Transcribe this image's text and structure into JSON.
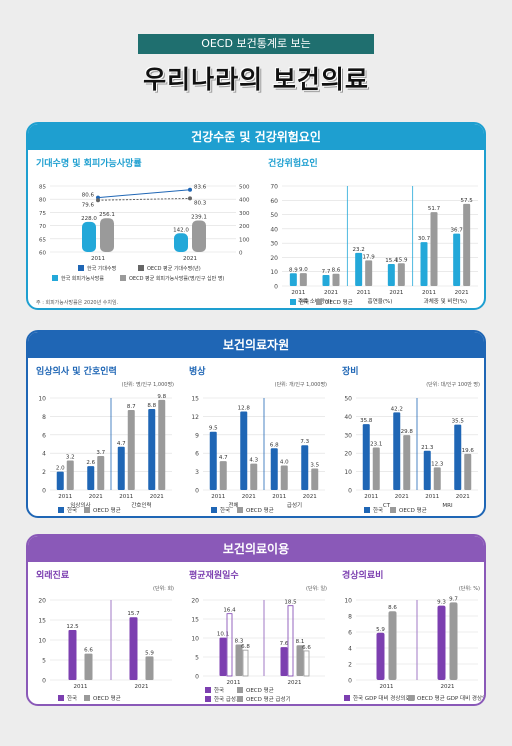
{
  "header": {
    "badge": "OECD 보건통계로 보는",
    "title": "우리나라의 보건의료"
  },
  "sections": {
    "health": {
      "title": "건강수준 및 건강위험요인",
      "color": "#1e9fd0"
    },
    "resources": {
      "title": "보건의료자원",
      "color": "#1f66b5"
    },
    "utilization": {
      "title": "보건의료이용",
      "color": "#8a59b8"
    }
  },
  "colors": {
    "korea_blue": "#1f66b5",
    "korea_purple": "#7c3fb0",
    "oecd_gray": "#9a9a9a",
    "teal": "#23a8d9"
  },
  "chart_data": [
    {
      "id": "life",
      "type": "bar",
      "title": "기대수명 및 회피가능사망률",
      "categories": [
        "2011",
        "2021"
      ],
      "y_left": {
        "ticks": [
          "85",
          "80",
          "75",
          "70",
          "65",
          "60"
        ],
        "ylim": [
          60,
          85
        ]
      },
      "y_right": {
        "ticks": [
          "500",
          "400",
          "300",
          "200",
          "100",
          "0"
        ],
        "ylim": [
          0,
          500
        ]
      },
      "series": [
        {
          "name": "한국 회피가능사망률",
          "axis": "right",
          "values": [
            228.0,
            142.0
          ]
        },
        {
          "name": "OECD 평균 회피가능사망률(명/인구 십만 명)",
          "axis": "right",
          "values": [
            256.1,
            239.1
          ]
        },
        {
          "name": "한국 기대수명",
          "axis": "left",
          "values": [
            80.6,
            83.6
          ]
        },
        {
          "name": "OECD 평균 기대수명(년)",
          "axis": "left",
          "values": [
            79.6,
            80.3
          ]
        }
      ],
      "labels": {
        "korea_mort": [
          "228.0",
          "142.0"
        ],
        "oecd_mort": [
          "256.1",
          "239.1"
        ],
        "korea_life": [
          "80.6",
          "83.6"
        ],
        "oecd_life": [
          "79.6",
          "80.3"
        ]
      },
      "legend": [
        "한국 기대수명",
        "OECD 평균 기대수명(년)",
        "한국 회피가능사망률",
        "OECD 평균 회피가능사망률(명/인구 십만 명)"
      ],
      "note": "주 : 회피가능사망률은 2020년 수치임."
    },
    {
      "id": "risk",
      "type": "bar",
      "title": "건강위험요인",
      "ylim": [
        0,
        70
      ],
      "ticks": [
        "70",
        "60",
        "50",
        "40",
        "30",
        "20",
        "10",
        "0"
      ],
      "groups": [
        {
          "label": "주류 소비량(ℓ)",
          "years": [
            "2011",
            "2021"
          ],
          "korea": [
            8.9,
            7.7
          ],
          "oecd": [
            9.0,
            8.6
          ],
          "klab": [
            "8.9",
            "7.7"
          ],
          "olab": [
            "9.0",
            "8.6"
          ]
        },
        {
          "label": "흡연율(%)",
          "years": [
            "2011",
            "2021"
          ],
          "korea": [
            23.2,
            15.4
          ],
          "oecd": [
            17.9,
            15.9
          ],
          "klab": [
            "23.2",
            "15.4"
          ],
          "olab": [
            "17.9",
            "15.9"
          ]
        },
        {
          "label": "과체중 및 비만(%)",
          "years": [
            "2011",
            "2021"
          ],
          "korea": [
            30.7,
            36.7
          ],
          "oecd": [
            51.7,
            57.5
          ],
          "klab": [
            "30.7",
            "36.7"
          ],
          "olab": [
            "51.7",
            "57.5"
          ]
        }
      ],
      "legend": [
        "한국",
        "OECD 평균"
      ]
    },
    {
      "id": "staff",
      "type": "bar",
      "title": "임상의사 및 간호인력",
      "unit": "(단위: 명/인구 1,000명)",
      "ylim": [
        0,
        10
      ],
      "ticks": [
        "10",
        "8",
        "6",
        "4",
        "2",
        "0"
      ],
      "groups": [
        {
          "label": "임상의사",
          "years": [
            "2011",
            "2021"
          ],
          "korea": [
            2.0,
            2.6
          ],
          "oecd": [
            3.2,
            3.7
          ],
          "klab": [
            "2.0",
            "2.6"
          ],
          "olab": [
            "3.2",
            "3.7"
          ]
        },
        {
          "label": "간호인력",
          "years": [
            "2011",
            "2021"
          ],
          "korea": [
            4.7,
            8.8
          ],
          "oecd": [
            8.7,
            9.8
          ],
          "klab": [
            "4.7",
            "8.8"
          ],
          "olab": [
            "8.7",
            "9.8"
          ]
        }
      ],
      "legend": [
        "한국",
        "OECD 평균"
      ]
    },
    {
      "id": "beds",
      "type": "bar",
      "title": "병상",
      "unit": "(단위: 개/인구 1,000명)",
      "ylim": [
        0,
        15
      ],
      "ticks": [
        "15",
        "12",
        "9",
        "6",
        "3",
        "0"
      ],
      "groups": [
        {
          "label": "전체",
          "years": [
            "2011",
            "2021"
          ],
          "korea": [
            9.5,
            12.8
          ],
          "oecd": [
            4.7,
            4.3
          ],
          "klab": [
            "9.5",
            "12.8"
          ],
          "olab": [
            "4.7",
            "4.3"
          ]
        },
        {
          "label": "급성기",
          "years": [
            "2011",
            "2021"
          ],
          "korea": [
            6.8,
            7.3
          ],
          "oecd": [
            4.0,
            3.5
          ],
          "klab": [
            "6.8",
            "7.3"
          ],
          "olab": [
            "4.0",
            "3.5"
          ]
        }
      ],
      "legend": [
        "한국",
        "OECD 평균"
      ]
    },
    {
      "id": "equip",
      "type": "bar",
      "title": "장비",
      "unit": "(단위: 대/인구 100만 명)",
      "ylim": [
        0,
        50
      ],
      "ticks": [
        "50",
        "40",
        "30",
        "20",
        "10",
        "0"
      ],
      "groups": [
        {
          "label": "CT",
          "years": [
            "2011",
            "2021"
          ],
          "korea": [
            35.8,
            42.2
          ],
          "oecd": [
            23.1,
            29.8
          ],
          "klab": [
            "35.8",
            "42.2"
          ],
          "olab": [
            "23.1",
            "29.8"
          ]
        },
        {
          "label": "MRI",
          "years": [
            "2011",
            "2021"
          ],
          "korea": [
            21.3,
            35.5
          ],
          "oecd": [
            12.3,
            19.6
          ],
          "klab": [
            "21.3",
            "35.5"
          ],
          "olab": [
            "12.3",
            "19.6"
          ]
        }
      ],
      "legend": [
        "한국",
        "OECD 평균"
      ]
    },
    {
      "id": "visits",
      "type": "bar",
      "title": "외래진료",
      "unit": "(단위: 회)",
      "ylim": [
        0,
        20
      ],
      "ticks": [
        "20",
        "15",
        "10",
        "5",
        "0"
      ],
      "groups": [
        {
          "label": "2011",
          "korea": [
            12.5
          ],
          "oecd": [
            6.6
          ],
          "klab": [
            "12.5"
          ],
          "olab": [
            "6.6"
          ]
        },
        {
          "label": "2021",
          "korea": [
            15.7
          ],
          "oecd": [
            5.9
          ],
          "klab": [
            "15.7"
          ],
          "olab": [
            "5.9"
          ]
        }
      ],
      "legend": [
        "한국",
        "OECD 평균"
      ]
    },
    {
      "id": "los",
      "type": "bar",
      "title": "평균재원일수",
      "unit": "(단위: 일)",
      "ylim": [
        0,
        20
      ],
      "ticks": [
        "20",
        "15",
        "10",
        "5",
        "0"
      ],
      "categories": [
        "2011",
        "2021"
      ],
      "series": [
        {
          "name": "한국",
          "values": [
            10.1,
            7.6
          ]
        },
        {
          "name": "OECD 평균",
          "values": [
            8.3,
            8.1
          ]
        }
      ],
      "acute": {
        "korea": [
          16.4,
          18.5
        ],
        "oecd": [
          6.8,
          6.6
        ],
        "klab": [
          "16.4",
          "18.5"
        ],
        "olab": [
          "6.8",
          "6.6"
        ]
      },
      "klab": [
        "10.1",
        "7.6"
      ],
      "olab": [
        "8.3",
        "8.1"
      ],
      "legend": [
        "한국",
        "OECD 평균",
        "한국 급성기",
        "OECD 평균 급성기"
      ]
    },
    {
      "id": "exp",
      "type": "bar",
      "title": "경상의료비",
      "unit": "(단위: %)",
      "ylim": [
        0,
        10
      ],
      "ticks": [
        "10",
        "8",
        "6",
        "4",
        "2",
        "0"
      ],
      "categories": [
        "2011",
        "2021"
      ],
      "series": [
        {
          "name": "한국 GDP 대비 경상의료비",
          "values": [
            5.9,
            9.3
          ]
        },
        {
          "name": "OECD 평균 GDP 대비 경상의료비",
          "values": [
            8.6,
            9.7
          ]
        }
      ],
      "klab": [
        "5.9",
        "9.3"
      ],
      "olab": [
        "8.6",
        "9.7"
      ],
      "legend": [
        "한국 GDP 대비 경상의료비",
        "OECD 평균 GDP 대비 경상의료비"
      ]
    }
  ]
}
